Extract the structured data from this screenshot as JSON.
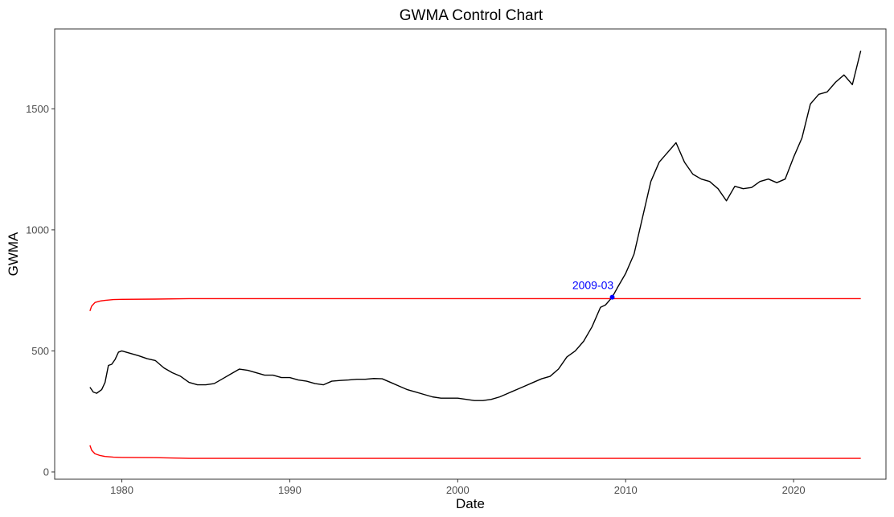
{
  "chart_data": {
    "type": "line",
    "title": "GWMA Control Chart",
    "xlabel": "Date",
    "ylabel": "GWMA",
    "xlim": [
      1976.0,
      2025.5
    ],
    "ylim": [
      -30,
      1830
    ],
    "x_ticks": [
      1980,
      1990,
      2000,
      2010,
      2020
    ],
    "x_tick_labels": [
      "1980",
      "1990",
      "2000",
      "2010",
      "2020"
    ],
    "y_ticks": [
      0,
      500,
      1000,
      1500
    ],
    "y_tick_labels": [
      "0",
      "500",
      "1000",
      "1500"
    ],
    "grid": false,
    "legend": "none",
    "series": [
      {
        "color": "#000000",
        "x": [
          1978.1,
          1978.3,
          1978.5,
          1978.8,
          1979.0,
          1979.2,
          1979.4,
          1979.6,
          1979.8,
          1980.0,
          1980.5,
          1981.0,
          1981.5,
          1982.0,
          1982.5,
          1983.0,
          1983.5,
          1984.0,
          1984.5,
          1985.0,
          1985.5,
          1986.0,
          1986.5,
          1987.0,
          1987.5,
          1988.0,
          1988.5,
          1989.0,
          1989.5,
          1990.0,
          1990.5,
          1991.0,
          1991.5,
          1992.0,
          1992.5,
          1993.0,
          1993.5,
          1994.0,
          1994.5,
          1995.0,
          1995.5,
          1996.0,
          1996.5,
          1997.0,
          1997.5,
          1998.0,
          1998.5,
          1999.0,
          1999.5,
          2000.0,
          2000.5,
          2001.0,
          2001.5,
          2002.0,
          2002.5,
          2003.0,
          2003.5,
          2004.0,
          2004.5,
          2005.0,
          2005.5,
          2006.0,
          2006.5,
          2007.0,
          2007.5,
          2008.0,
          2008.5,
          2008.8,
          2009.2,
          2009.5,
          2010.0,
          2010.5,
          2011.0,
          2011.5,
          2012.0,
          2012.5,
          2013.0,
          2013.5,
          2014.0,
          2014.5,
          2015.0,
          2015.5,
          2016.0,
          2016.5,
          2017.0,
          2017.5,
          2018.0,
          2018.5,
          2019.0,
          2019.5,
          2020.0,
          2020.5,
          2021.0,
          2021.5,
          2022.0,
          2022.5,
          2023.0,
          2023.5,
          2024.0
        ],
        "values": [
          350,
          330,
          325,
          340,
          370,
          440,
          445,
          465,
          495,
          500,
          490,
          480,
          468,
          460,
          430,
          410,
          395,
          370,
          360,
          360,
          365,
          385,
          405,
          425,
          420,
          410,
          400,
          400,
          390,
          390,
          380,
          375,
          365,
          360,
          375,
          378,
          380,
          383,
          383,
          386,
          385,
          370,
          355,
          340,
          330,
          320,
          310,
          305,
          305,
          305,
          300,
          295,
          295,
          300,
          310,
          325,
          340,
          355,
          370,
          385,
          395,
          425,
          475,
          500,
          540,
          600,
          680,
          690,
          722,
          760,
          820,
          900,
          1050,
          1200,
          1280,
          1320,
          1360,
          1280,
          1230,
          1210,
          1200,
          1170,
          1120,
          1180,
          1170,
          1175,
          1200,
          1210,
          1195,
          1210,
          1300,
          1380,
          1520,
          1560,
          1570,
          1610,
          1640,
          1600,
          1740
        ]
      },
      {
        "color": "#ff0000",
        "x": [
          1978.1,
          1978.2,
          1978.4,
          1978.7,
          1979.0,
          1979.5,
          1980.0,
          1982.0,
          1984.0,
          2024.0
        ],
        "values": [
          665,
          685,
          700,
          706,
          709,
          712,
          713,
          714,
          716,
          716
        ]
      },
      {
        "color": "#ff0000",
        "x": [
          1978.1,
          1978.2,
          1978.4,
          1978.7,
          1979.0,
          1979.5,
          1980.0,
          1982.0,
          1984.0,
          2024.0
        ],
        "values": [
          110,
          90,
          75,
          68,
          64,
          61,
          60,
          59,
          56,
          56
        ]
      }
    ],
    "annotations": [
      {
        "x": 2009.2,
        "y": 722,
        "label": "2009-03",
        "color": "#0000ff"
      }
    ]
  }
}
